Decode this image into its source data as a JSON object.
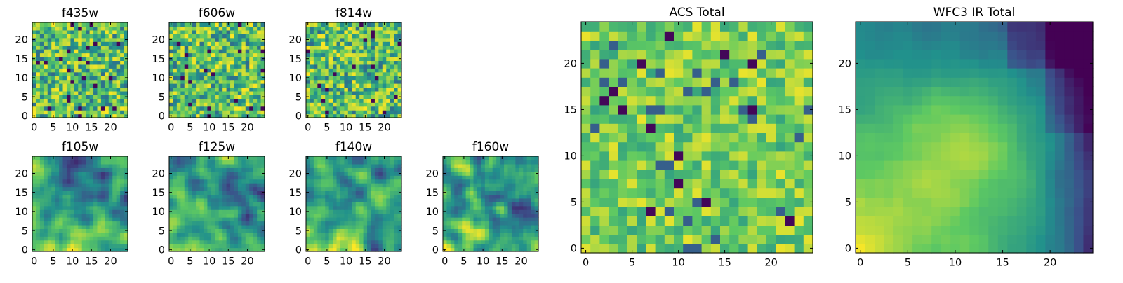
{
  "chart_data": [
    {
      "type": "heatmap",
      "title": "f435w",
      "xticks": [
        0,
        5,
        10,
        15,
        20
      ],
      "yticks": [
        0,
        5,
        10,
        15,
        20
      ],
      "xlim": [
        -0.5,
        24.5
      ],
      "ylim": [
        -0.5,
        24.5
      ],
      "grid_size": 25,
      "pattern": "noise",
      "note": "pixel intensities approximate (not labeled)"
    },
    {
      "type": "heatmap",
      "title": "f606w",
      "xticks": [
        0,
        5,
        10,
        15,
        20
      ],
      "yticks": [
        0,
        5,
        10,
        15,
        20
      ],
      "xlim": [
        -0.5,
        24.5
      ],
      "ylim": [
        -0.5,
        24.5
      ],
      "grid_size": 25,
      "pattern": "noise",
      "note": "pixel intensities approximate (not labeled)"
    },
    {
      "type": "heatmap",
      "title": "f814w",
      "xticks": [
        0,
        5,
        10,
        15,
        20
      ],
      "yticks": [
        0,
        5,
        10,
        15,
        20
      ],
      "xlim": [
        -0.5,
        24.5
      ],
      "ylim": [
        -0.5,
        24.5
      ],
      "grid_size": 25,
      "pattern": "noise",
      "note": "pixel intensities approximate (not labeled)"
    },
    {
      "type": "heatmap",
      "title": "f105w",
      "xticks": [
        0,
        5,
        10,
        15,
        20
      ],
      "yticks": [
        0,
        5,
        10,
        15,
        20
      ],
      "xlim": [
        -0.5,
        24.5
      ],
      "ylim": [
        -0.5,
        24.5
      ],
      "grid_size": 25,
      "pattern": "smooth",
      "note": "pixel intensities approximate (not labeled)"
    },
    {
      "type": "heatmap",
      "title": "f125w",
      "xticks": [
        0,
        5,
        10,
        15,
        20
      ],
      "yticks": [
        0,
        5,
        10,
        15,
        20
      ],
      "xlim": [
        -0.5,
        24.5
      ],
      "ylim": [
        -0.5,
        24.5
      ],
      "grid_size": 25,
      "pattern": "smooth",
      "note": "pixel intensities approximate (not labeled)"
    },
    {
      "type": "heatmap",
      "title": "f140w",
      "xticks": [
        0,
        5,
        10,
        15,
        20
      ],
      "yticks": [
        0,
        5,
        10,
        15,
        20
      ],
      "xlim": [
        -0.5,
        24.5
      ],
      "ylim": [
        -0.5,
        24.5
      ],
      "grid_size": 25,
      "pattern": "smooth",
      "note": "pixel intensities approximate (not labeled)"
    },
    {
      "type": "heatmap",
      "title": "f160w",
      "xticks": [
        0,
        5,
        10,
        15,
        20
      ],
      "yticks": [
        0,
        5,
        10,
        15,
        20
      ],
      "xlim": [
        -0.5,
        24.5
      ],
      "ylim": [
        -0.5,
        24.5
      ],
      "grid_size": 25,
      "pattern": "smooth",
      "note": "pixel intensities approximate (not labeled)"
    },
    {
      "type": "heatmap",
      "title": "ACS Total",
      "xticks": [
        0,
        5,
        10,
        15,
        20
      ],
      "yticks": [
        0,
        5,
        10,
        15,
        20
      ],
      "xlim": [
        -0.5,
        24.5
      ],
      "ylim": [
        -0.5,
        24.5
      ],
      "grid_size": 25,
      "pattern": "noise_bright",
      "note": "pixel intensities approximate (not labeled)"
    },
    {
      "type": "heatmap",
      "title": "WFC3 IR Total",
      "xticks": [
        0,
        5,
        10,
        15,
        20
      ],
      "yticks": [
        0,
        5,
        10,
        15,
        20
      ],
      "xlim": [
        -0.5,
        24.5
      ],
      "ylim": [
        -0.5,
        24.5
      ],
      "grid_size": 25,
      "pattern": "gradient_blob",
      "note": "pixel intensities approximate (not labeled)"
    }
  ],
  "colors": {
    "colormap": [
      "#440154",
      "#3b528b",
      "#21918c",
      "#5ec962",
      "#fde725"
    ],
    "axes_frame": "#000000",
    "background": "#ffffff"
  }
}
